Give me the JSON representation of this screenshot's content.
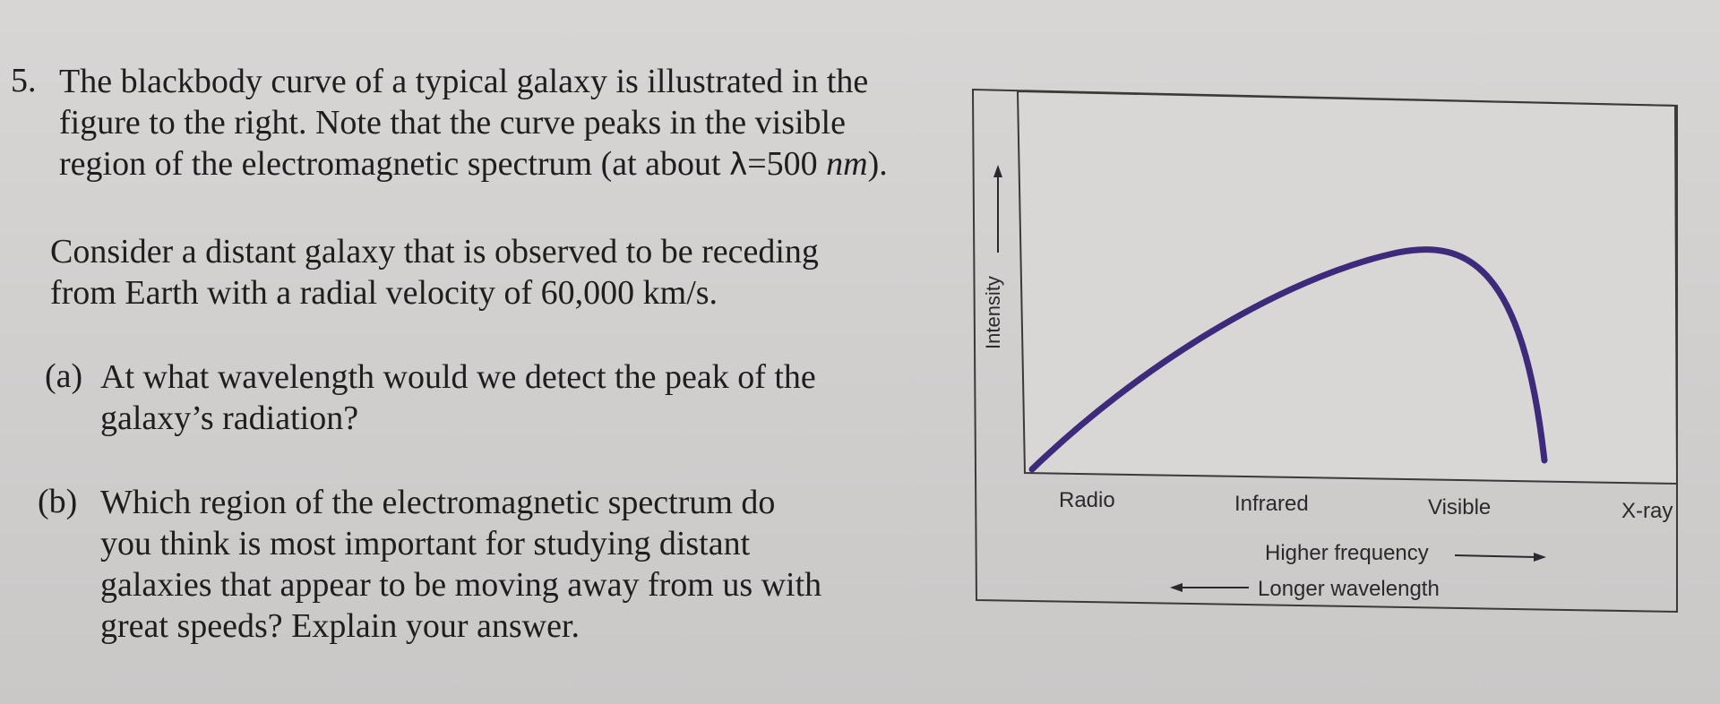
{
  "question": {
    "number": "5.",
    "intro_lines": [
      "The blackbody curve of a typical galaxy is illustrated in the",
      "figure to the right.  Note that the curve peaks in the visible",
      "region of the electromagnetic spectrum (at about "
    ],
    "lambda_symbol": "λ",
    "peak_value": "=500 ",
    "peak_unit": "nm",
    "intro_end": ").",
    "context_lines": [
      "Consider a distant galaxy that is observed to be receding",
      "from Earth with a radial velocity of 60,000 km/s."
    ],
    "part_a": {
      "label": "(a)",
      "lines": [
        "At what wavelength would we detect the peak of the",
        "galaxy’s radiation?"
      ]
    },
    "part_b": {
      "label": "(b)",
      "lines": [
        "Which region of the electromagnetic spectrum do",
        "you think is most important for studying distant",
        "galaxies that appear to be moving away from us with",
        "great speeds?  Explain your answer."
      ]
    }
  },
  "figure": {
    "ylabel": "Intensity",
    "regions": [
      "Radio",
      "Infrared",
      "Visible",
      "X-ray"
    ],
    "arrow_right_label": "Higher frequency",
    "arrow_left_label": "Longer wavelength",
    "curve_color": "#3d2a7a",
    "peak_region": "Visible"
  }
}
